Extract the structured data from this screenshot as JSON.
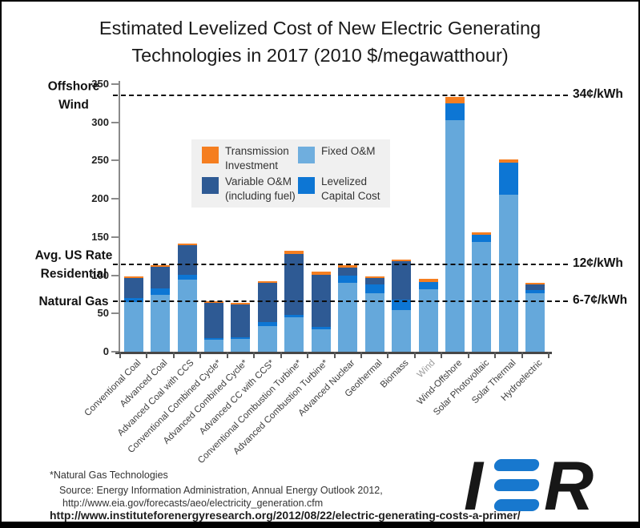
{
  "title": {
    "line1": "Estimated Levelized Cost of New Electric Generating",
    "line2": "Technologies in 2017 (2010 $/megawatthour)"
  },
  "chart_data": {
    "type": "bar",
    "stacked": true,
    "title": "Estimated Levelized Cost of New Electric Generating Technologies in 2017 (2010 $/megawatthour)",
    "ylabel": "2010 $/megawatthour",
    "ylim": [
      0,
      350
    ],
    "yticks": [
      0,
      50,
      100,
      150,
      200,
      250,
      300,
      350
    ],
    "grid": false,
    "legend_position": "upper-left-inside",
    "categories": [
      "Conventional Coal",
      "Advanced Coal",
      "Advanced Coal with CCS",
      "Conventional Combined Cycle*",
      "Advanced Combined Cycle*",
      "Advanced CC with CCS*",
      "Conventional Combustion Turbine*",
      "Advanced Combustion Turbine*",
      "Advanced Nuclear",
      "Geothermal",
      "Biomass",
      "Wind",
      "Wind-Offshore",
      "Solar Photovoltaic",
      "Solar Thermal",
      "Hydroelectric"
    ],
    "muted_category": "Wind",
    "stack_order_note": "segments bottom-to-top: Fixed O&M (light blue), Levelized Capital Cost (blue), Variable O&M (dark blue), Transmission Investment (orange)",
    "series": [
      {
        "name": "Fixed O&M",
        "color": "#65a8db",
        "values": [
          65,
          74.5,
          94,
          16,
          17,
          34,
          45,
          29.5,
          90,
          76,
          54.5,
          81.5,
          302.5,
          144,
          205,
          76.5
        ]
      },
      {
        "name": "Levelized Capital Cost",
        "color": "#0d76d4",
        "values": [
          5,
          8,
          7,
          2,
          2,
          4.5,
          3.5,
          3.5,
          10,
          12,
          13.5,
          9.5,
          22,
          8.5,
          42,
          4
        ]
      },
      {
        "name": "Variable O&M (including fuel)",
        "color": "#2e5a94",
        "values": [
          26.5,
          29.5,
          38,
          47,
          43,
          52,
          79,
          67.5,
          10.5,
          9.5,
          50,
          0,
          0,
          0,
          0,
          7.5
        ]
      },
      {
        "name": "Transmission Investment",
        "color": "#f57e20",
        "values": [
          2.5,
          1.5,
          2,
          1.5,
          1.5,
          1.5,
          5,
          4,
          2.5,
          1.5,
          2,
          4.5,
          8.5,
          4,
          5,
          2
        ]
      }
    ],
    "totals": [
      99,
      113.5,
      141,
      66.5,
      63.5,
      92,
      132.5,
      104.5,
      113,
      99,
      120,
      95.5,
      333,
      156.5,
      252,
      90
    ],
    "reference_lines": [
      {
        "value": 335,
        "left_label_lines": [
          "Offshore",
          "Wind"
        ],
        "right_label": "34¢/kWh"
      },
      {
        "value": 114,
        "left_label_lines": [
          "Avg. US Rate",
          "Residential"
        ],
        "right_label": "12¢/kWh"
      },
      {
        "value": 66,
        "left_label_lines": [
          "Natural Gas"
        ],
        "right_label": "6-7¢/kWh"
      }
    ]
  },
  "legend": {
    "items": [
      {
        "lines": [
          "Transmission",
          "Investment"
        ],
        "color": "#f57e20"
      },
      {
        "lines": [
          "Fixed O&M"
        ],
        "color": "#6faede"
      },
      {
        "lines": [
          "Variable O&M",
          "(including fuel)"
        ],
        "color": "#2e5a94"
      },
      {
        "lines": [
          "Levelized",
          "Capital Cost"
        ],
        "color": "#0d76d4"
      }
    ]
  },
  "footnotes": {
    "asterisk_note": "*Natural Gas Technologies",
    "source_line1": "Source: Energy Information Administration, Annual Energy Outlook 2012,",
    "source_line2": "http://www.eia.gov/forecasts/aeo/electricity_generation.cfm",
    "bottom_url": "http://www.instituteforenergyresearch.org/2012/08/22/electric-generating-costs-a-primer/"
  },
  "logo": {
    "letter_i": "I",
    "letter_r": "R",
    "blue": "#1878ce"
  }
}
